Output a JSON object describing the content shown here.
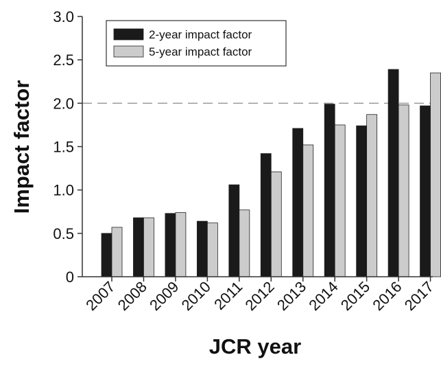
{
  "chart_data": {
    "type": "bar",
    "title": "",
    "xlabel": "JCR year",
    "ylabel": "Impact factor",
    "categories": [
      "2007",
      "2008",
      "2009",
      "2010",
      "2011",
      "2012",
      "2013",
      "2014",
      "2015",
      "2016",
      "2017"
    ],
    "series": [
      {
        "name": "2-year impact factor",
        "color": "#1a1a1a",
        "values": [
          0.5,
          0.68,
          0.73,
          0.64,
          1.06,
          1.42,
          1.71,
          1.99,
          1.74,
          2.39,
          1.97
        ]
      },
      {
        "name": "5-year impact factor",
        "color": "#cccccc",
        "values": [
          0.57,
          0.68,
          0.74,
          0.62,
          0.77,
          1.21,
          1.52,
          1.75,
          1.87,
          1.98,
          2.35
        ]
      }
    ],
    "ylim": [
      0,
      3.0
    ],
    "yticks": [
      "0",
      "0.5",
      "1.0",
      "1.5",
      "2.0",
      "2.5",
      "3.0"
    ],
    "reference_line": {
      "value": 2.0,
      "style": "dashed"
    },
    "legend_position": "top-left",
    "grid": false
  }
}
